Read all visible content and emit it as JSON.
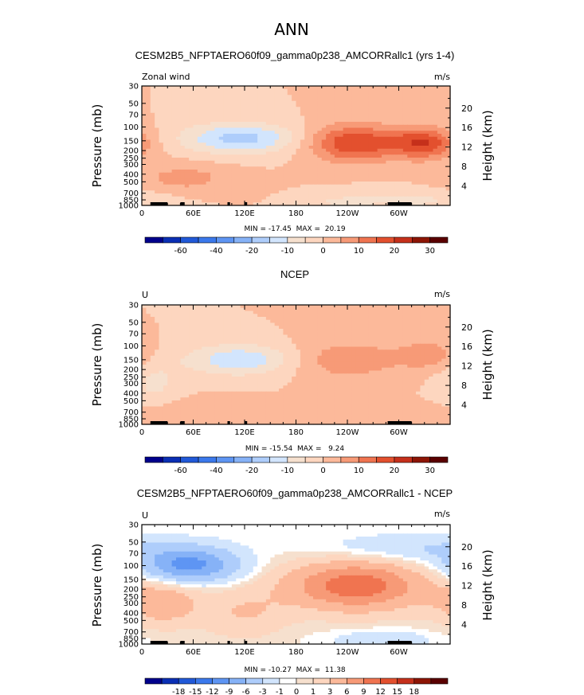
{
  "figure": {
    "title": "ANN"
  },
  "colors": {
    "scale_a": [
      "#00008c",
      "#0a2fb4",
      "#2159d8",
      "#3b79ec",
      "#5e95f3",
      "#86b2f7",
      "#aecdfb",
      "#d2e5fd",
      "#f6e0ce",
      "#fdd6bf",
      "#fcb99a",
      "#f79a77",
      "#f07450",
      "#e3502e",
      "#c5301b",
      "#8d1505",
      "#5a0000"
    ],
    "scale_b": [
      "#00008c",
      "#0a2fb4",
      "#2159d8",
      "#3b79ec",
      "#5e95f3",
      "#86b2f7",
      "#aecdfb",
      "#d2e5fd",
      "#ffffff",
      "#f6e0ce",
      "#fdd6bf",
      "#fcb99a",
      "#f79a77",
      "#f07450",
      "#e3502e",
      "#c5301b",
      "#8d1505",
      "#5a0000"
    ]
  },
  "chart_data": [
    {
      "id": "panel1",
      "type": "contour",
      "title": "CESM2B5_NFPTAERO60f09_gamma0p238_AMCORRallc1 (yrs 1-4)",
      "left_label": "Zonal wind",
      "units": "m/s",
      "ylabel": "Pressure (mb)",
      "y2label": "Height (km)",
      "x_ticks": [
        "0",
        "60E",
        "120E",
        "180",
        "120W",
        "60W"
      ],
      "pressure_ticks": [
        "30",
        "50",
        "70",
        "100",
        "150",
        "200",
        "250",
        "300",
        "400",
        "500",
        "700",
        "850",
        "1000"
      ],
      "height_ticks": [
        "20",
        "16",
        "12",
        "8",
        "4"
      ],
      "min_max": "MIN = -17.45  MAX =  20.19",
      "min": -17.45,
      "max": 20.19,
      "colorbar_labels": [
        "-60",
        "-40",
        "-20",
        "-10",
        "0",
        "10",
        "20",
        "30"
      ],
      "levels": [
        -70,
        -60,
        -50,
        -40,
        -30,
        -20,
        -15,
        -10,
        -5,
        0,
        5,
        10,
        15,
        20,
        25,
        30
      ],
      "scale": "scale_a",
      "features": [
        {
          "lon": 115,
          "p": 140,
          "value": -17,
          "sx": 48,
          "sy": 0.32
        },
        {
          "lon": 248,
          "p": 160,
          "value": 20,
          "sx": 38,
          "sy": 0.38
        },
        {
          "lon": 330,
          "p": 160,
          "value": 19,
          "sx": 26,
          "sy": 0.32
        },
        {
          "lon": 50,
          "p": 450,
          "value": 7,
          "sx": 40,
          "sy": 0.3
        },
        {
          "lon": 320,
          "p": 850,
          "value": -6,
          "sx": 50,
          "sy": 0.22
        },
        {
          "lon": 230,
          "p": 900,
          "value": -5,
          "sx": 30,
          "sy": 0.15
        }
      ]
    },
    {
      "id": "panel2",
      "type": "contour",
      "title": "NCEP",
      "left_label": "U",
      "units": "m/s",
      "ylabel": "Pressure (mb)",
      "y2label": "Height (km)",
      "x_ticks": [
        "0",
        "60E",
        "120E",
        "180",
        "120W",
        "60W"
      ],
      "pressure_ticks": [
        "30",
        "50",
        "70",
        "100",
        "150",
        "200",
        "250",
        "300",
        "400",
        "500",
        "700",
        "850",
        "1000"
      ],
      "height_ticks": [
        "20",
        "16",
        "12",
        "8",
        "4"
      ],
      "min_max": "MIN = -15.54  MAX =   9.24",
      "min": -15.54,
      "max": 9.24,
      "colorbar_labels": [
        "-60",
        "-40",
        "-20",
        "-10",
        "0",
        "10",
        "20",
        "30"
      ],
      "levels": [
        -70,
        -60,
        -50,
        -40,
        -30,
        -20,
        -15,
        -10,
        -5,
        0,
        5,
        10,
        15,
        20,
        25,
        30
      ],
      "scale": "scale_a",
      "features": [
        {
          "lon": 115,
          "p": 150,
          "value": -14,
          "sx": 45,
          "sy": 0.32
        },
        {
          "lon": 240,
          "p": 150,
          "value": 9,
          "sx": 45,
          "sy": 0.4
        },
        {
          "lon": 335,
          "p": 130,
          "value": 8,
          "sx": 25,
          "sy": 0.3
        },
        {
          "lon": 60,
          "p": 700,
          "value": 4,
          "sx": 55,
          "sy": 0.25
        },
        {
          "lon": 15,
          "p": 300,
          "value": -6,
          "sx": 20,
          "sy": 0.5
        }
      ]
    },
    {
      "id": "panel3",
      "type": "contour",
      "title": "CESM2B5_NFPTAERO60f09_gamma0p238_AMCORRallc1 - NCEP",
      "left_label": "U",
      "units": "m/s",
      "ylabel": "Pressure (mb)",
      "y2label": "Height (km)",
      "x_ticks": [
        "0",
        "60E",
        "120E",
        "180",
        "120W",
        "60W"
      ],
      "pressure_ticks": [
        "30",
        "50",
        "70",
        "100",
        "150",
        "200",
        "250",
        "300",
        "400",
        "500",
        "700",
        "850",
        "1000"
      ],
      "height_ticks": [
        "20",
        "16",
        "12",
        "8",
        "4"
      ],
      "min_max": "MIN = -10.27  MAX =  11.38",
      "min": -10.27,
      "max": 11.38,
      "colorbar_labels": [
        "-18",
        "-15",
        "-12",
        "-9",
        "-6",
        "-3",
        "-1",
        "0",
        "1",
        "3",
        "6",
        "9",
        "12",
        "15",
        "18"
      ],
      "levels": [
        -21,
        -18,
        -15,
        -12,
        -9,
        -6,
        -3,
        -1,
        0,
        1,
        3,
        6,
        9,
        12,
        15,
        18,
        21
      ],
      "scale": "scale_b",
      "features": [
        {
          "lon": 55,
          "p": 100,
          "value": -10,
          "sx": 40,
          "sy": 0.35
        },
        {
          "lon": 25,
          "p": 300,
          "value": 5,
          "sx": 30,
          "sy": 0.45
        },
        {
          "lon": 250,
          "p": 180,
          "value": 11,
          "sx": 55,
          "sy": 0.5
        },
        {
          "lon": 120,
          "p": 400,
          "value": 3,
          "sx": 35,
          "sy": 0.5
        },
        {
          "lon": 320,
          "p": 60,
          "value": -3,
          "sx": 80,
          "sy": 0.3
        },
        {
          "lon": 280,
          "p": 900,
          "value": -3,
          "sx": 40,
          "sy": 0.2
        }
      ]
    }
  ]
}
